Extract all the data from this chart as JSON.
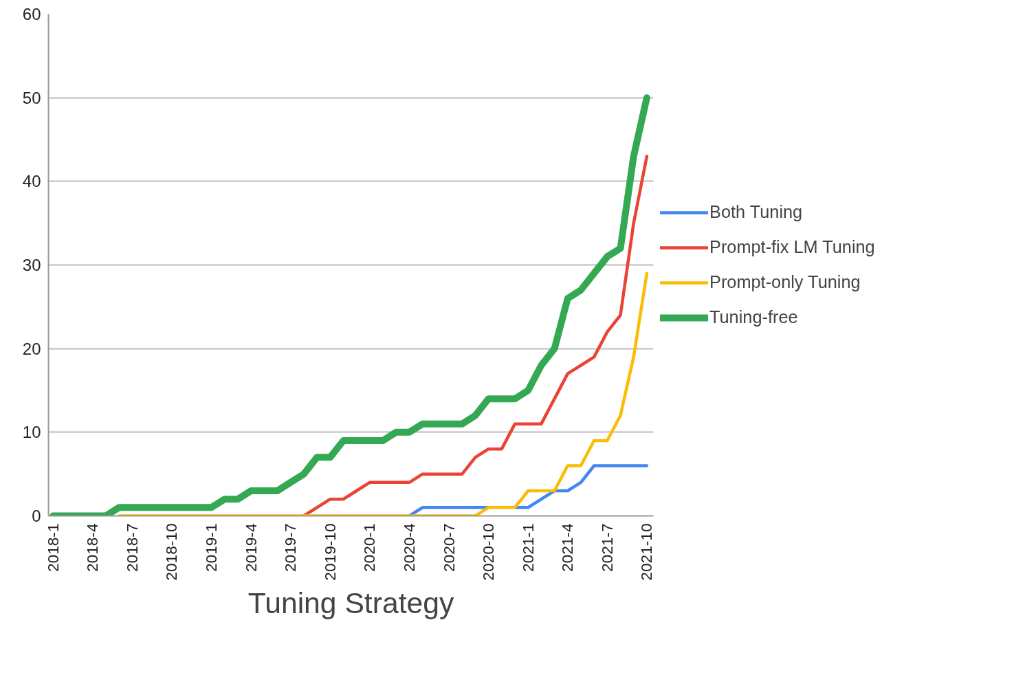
{
  "chart_data": {
    "type": "line",
    "xlabel": "Tuning Strategy",
    "categories": [
      "2018-1",
      null,
      null,
      "2018-4",
      null,
      null,
      "2018-7",
      null,
      null,
      "2018-10",
      null,
      null,
      "2019-1",
      null,
      null,
      "2019-4",
      null,
      null,
      "2019-7",
      null,
      null,
      "2019-10",
      null,
      null,
      "2020-1",
      null,
      null,
      "2020-4",
      null,
      null,
      "2020-7",
      null,
      null,
      "2020-10",
      null,
      null,
      "2021-1",
      null,
      null,
      "2021-4",
      null,
      null,
      "2021-7",
      null,
      null,
      "2021-10"
    ],
    "series": [
      {
        "name": "Both Tuning",
        "color": "#4285f4",
        "values": [
          null,
          null,
          null,
          null,
          null,
          null,
          null,
          null,
          null,
          null,
          null,
          null,
          null,
          null,
          null,
          null,
          null,
          null,
          null,
          null,
          null,
          null,
          null,
          null,
          null,
          null,
          null,
          0,
          1,
          1,
          1,
          1,
          1,
          1,
          null,
          1,
          1,
          2,
          3,
          3,
          4,
          6,
          6,
          6,
          6,
          6
        ]
      },
      {
        "name": "Prompt-fix LM Tuning",
        "color": "#ea4335",
        "values": [
          null,
          null,
          null,
          null,
          null,
          null,
          null,
          null,
          null,
          null,
          null,
          null,
          null,
          null,
          null,
          null,
          null,
          null,
          null,
          0,
          1,
          2,
          2,
          3,
          4,
          4,
          4,
          4,
          5,
          5,
          5,
          5,
          7,
          8,
          8,
          11,
          11,
          11,
          14,
          17,
          18,
          19,
          22,
          24,
          35,
          43
        ]
      },
      {
        "name": "Prompt-only Tuning",
        "color": "#fbbc04",
        "values": [
          null,
          null,
          null,
          null,
          null,
          0,
          0,
          0,
          0,
          0,
          0,
          0,
          0,
          0,
          0,
          0,
          0,
          0,
          0,
          0,
          0,
          0,
          0,
          0,
          0,
          0,
          0,
          0,
          0,
          0,
          0,
          0,
          0,
          1,
          1,
          1,
          3,
          3,
          3,
          6,
          6,
          9,
          9,
          12,
          19,
          29
        ]
      },
      {
        "name": "Tuning-free",
        "color": "#34a853",
        "values": [
          0,
          0,
          0,
          0,
          0,
          1,
          1,
          1,
          1,
          1,
          1,
          1,
          1,
          2,
          2,
          3,
          3,
          3,
          4,
          5,
          7,
          7,
          9,
          9,
          9,
          9,
          10,
          10,
          11,
          11,
          11,
          11,
          12,
          14,
          14,
          14,
          15,
          18,
          20,
          26,
          27,
          29,
          31,
          32,
          43,
          50
        ]
      }
    ],
    "ylim": [
      0,
      60
    ],
    "yticks": [
      0,
      10,
      20,
      30,
      40,
      50,
      60
    ],
    "grid": "y",
    "legend": "right"
  }
}
